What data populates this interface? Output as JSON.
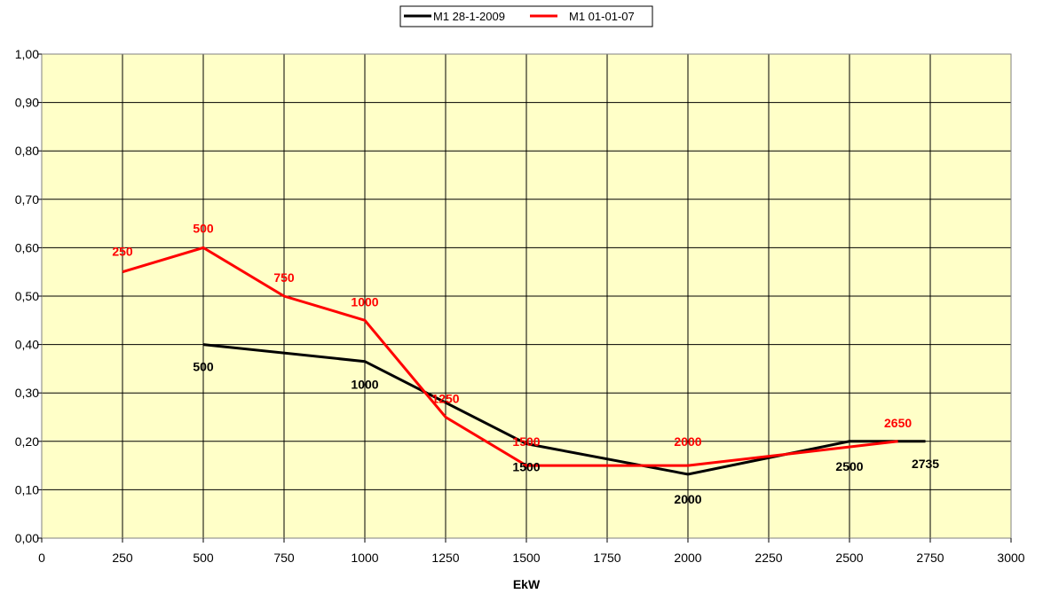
{
  "chart_data": {
    "type": "line",
    "title": "",
    "xlabel": "EkW",
    "ylabel": "",
    "xlim": [
      0,
      3000
    ],
    "ylim": [
      0,
      1
    ],
    "x_ticks": [
      "0",
      "250",
      "500",
      "750",
      "1000",
      "1250",
      "1500",
      "1750",
      "2000",
      "2250",
      "2500",
      "2750",
      "3000"
    ],
    "y_ticks": [
      "0,00",
      "0,10",
      "0,20",
      "0,30",
      "0,40",
      "0,50",
      "0,60",
      "0,70",
      "0,80",
      "0,90",
      "1,00"
    ],
    "grid": true,
    "legend_position": "top-center",
    "plot_background": "#FFFFC8",
    "series": [
      {
        "name": "M1 28-1-2009",
        "color": "#000000",
        "points": [
          {
            "x": 500,
            "y": 0.4,
            "label": "500"
          },
          {
            "x": 1000,
            "y": 0.365,
            "label": "1000"
          },
          {
            "x": 1500,
            "y": 0.195,
            "label": "1500"
          },
          {
            "x": 2000,
            "y": 0.132,
            "label": "2000"
          },
          {
            "x": 2500,
            "y": 0.2,
            "label": "2500"
          },
          {
            "x": 2735,
            "y": 0.2,
            "label": "2735"
          }
        ]
      },
      {
        "name": "M1 01-01-07",
        "color": "#FF0000",
        "points": [
          {
            "x": 250,
            "y": 0.55,
            "label": "250"
          },
          {
            "x": 500,
            "y": 0.6,
            "label": "500"
          },
          {
            "x": 750,
            "y": 0.5,
            "label": "750"
          },
          {
            "x": 1000,
            "y": 0.45,
            "label": "1000"
          },
          {
            "x": 1250,
            "y": 0.25,
            "label": "1250"
          },
          {
            "x": 1500,
            "y": 0.15,
            "label": "1500"
          },
          {
            "x": 2000,
            "y": 0.15,
            "label": "2000"
          },
          {
            "x": 2650,
            "y": 0.2,
            "label": "2650"
          }
        ]
      }
    ]
  }
}
